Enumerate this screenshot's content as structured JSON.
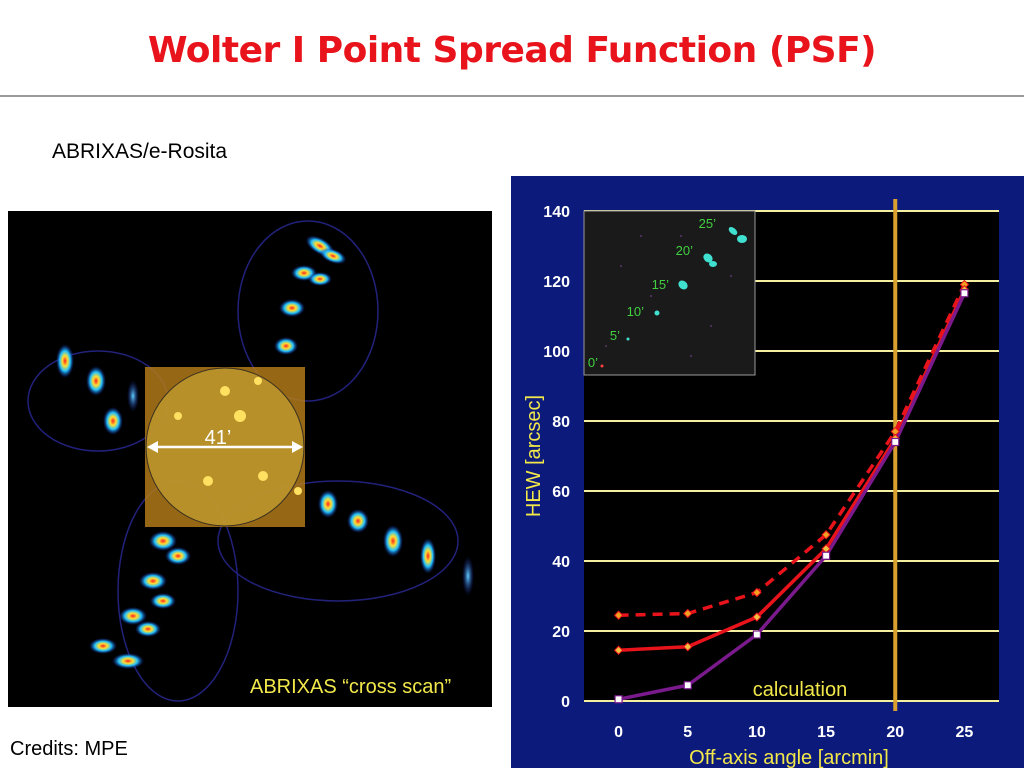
{
  "title": "Wolter I Point Spread Function (PSF)",
  "subtitle": "ABRIXAS/e-Rosita",
  "credits": "Credits: MPE",
  "psf_image": {
    "caption": "ABRIXAS “cross scan”",
    "scale_label": "41’"
  },
  "colors": {
    "title": "#e8131b",
    "chart_background": "#0c1a7c",
    "plot_background": "#000000",
    "grid": "#f4f0a0",
    "measured_dashed": "#e8131b",
    "measured_solid": "#e8131b",
    "calculation": "#7a1a8c",
    "vertical_marker": "#d9a030"
  },
  "chart_data": {
    "type": "line",
    "xlabel": "Off-axis angle [arcmin]",
    "ylabel": "HEW [arcsec]",
    "xlim": [
      -2.5,
      27.5
    ],
    "ylim": [
      0,
      140
    ],
    "xticks": [
      "0",
      "5",
      "10",
      "15",
      "20",
      "25"
    ],
    "yticks": [
      "0",
      "20",
      "40",
      "60",
      "80",
      "100",
      "120",
      "140"
    ],
    "grid": "horizontal",
    "vertical_marker_x": 20,
    "annotation": "calculation",
    "series": [
      {
        "style": "dashed",
        "marker": "diamond",
        "x": [
          0,
          5,
          10,
          15,
          20,
          25
        ],
        "y": [
          24.5,
          25,
          31,
          47.5,
          77,
          119
        ]
      },
      {
        "style": "solid",
        "marker": "diamond",
        "x": [
          0,
          5,
          10,
          15,
          20,
          25
        ],
        "y": [
          14.5,
          15.5,
          24,
          43.5,
          75,
          117.5
        ]
      },
      {
        "style": "solid",
        "marker": "square",
        "x": [
          0,
          5,
          10,
          15,
          20,
          25
        ],
        "y": [
          0.5,
          4.5,
          19,
          41.5,
          74,
          116.5
        ]
      }
    ],
    "inset": {
      "labels": [
        "25’",
        "20’",
        "15’",
        "10’",
        "5’",
        "0’"
      ]
    }
  }
}
